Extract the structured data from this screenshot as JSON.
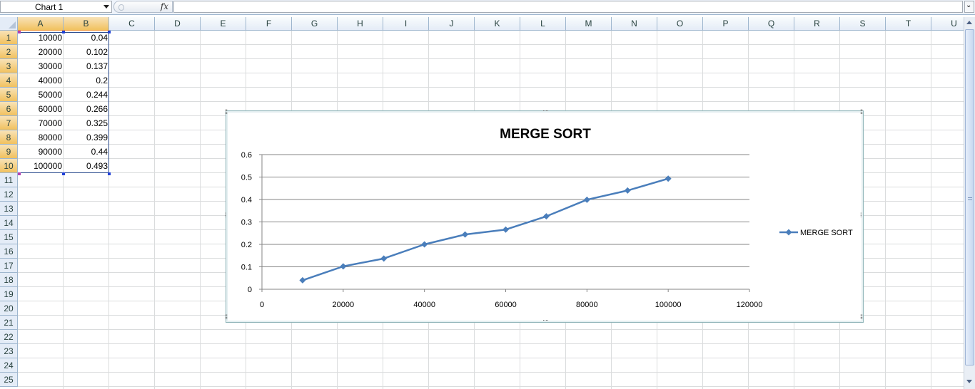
{
  "formula_bar": {
    "name_box": "Chart 1",
    "fx_label": "fx",
    "formula": "",
    "expand_glyph": "⌄"
  },
  "columns": [
    "A",
    "B",
    "C",
    "D",
    "E",
    "F",
    "G",
    "H",
    "I",
    "J",
    "K",
    "L",
    "M",
    "N",
    "O",
    "P",
    "Q",
    "R",
    "S",
    "T",
    "U"
  ],
  "rows": [
    "1",
    "2",
    "3",
    "4",
    "5",
    "6",
    "7",
    "8",
    "9",
    "10",
    "11",
    "12",
    "13",
    "14",
    "15",
    "16",
    "17",
    "18",
    "19",
    "20",
    "21",
    "22",
    "23",
    "24",
    "25"
  ],
  "cells": {
    "A": [
      "10000",
      "20000",
      "30000",
      "40000",
      "50000",
      "60000",
      "70000",
      "80000",
      "90000",
      "100000"
    ],
    "B": [
      "0.04",
      "0.102",
      "0.137",
      "0.2",
      "0.244",
      "0.266",
      "0.325",
      "0.399",
      "0.44",
      "0.493"
    ]
  },
  "colors": {
    "series": "#4a7ebb",
    "selection": "#2a4b8d",
    "range_handle_a": "#b03fb3",
    "range_handle_b": "#1f3fd6"
  },
  "chart_data": {
    "type": "line",
    "title": "MERGE SORT",
    "x": [
      10000,
      20000,
      30000,
      40000,
      50000,
      60000,
      70000,
      80000,
      90000,
      100000
    ],
    "series": [
      {
        "name": "MERGE SORT",
        "values": [
          0.04,
          0.102,
          0.137,
          0.2,
          0.244,
          0.266,
          0.325,
          0.399,
          0.44,
          0.493
        ]
      }
    ],
    "xlim": [
      0,
      120000
    ],
    "ylim": [
      0,
      0.6
    ],
    "x_ticks": [
      0,
      20000,
      40000,
      60000,
      80000,
      100000,
      120000
    ],
    "y_ticks": [
      0,
      0.1,
      0.2,
      0.3,
      0.4,
      0.5,
      0.6
    ],
    "x_tick_labels": [
      "0",
      "20000",
      "40000",
      "60000",
      "80000",
      "100000",
      "120000"
    ],
    "y_tick_labels": [
      "0",
      "0.1",
      "0.2",
      "0.3",
      "0.4",
      "0.5",
      "0.6"
    ],
    "grid": "horizontal",
    "legend": "right",
    "marker": "diamond"
  }
}
